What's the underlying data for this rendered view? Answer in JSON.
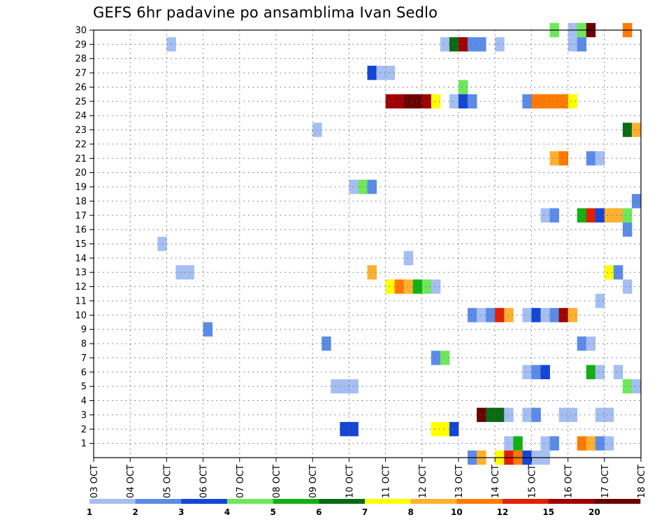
{
  "chart_data": {
    "type": "heatmap",
    "title": "GEFS 6hr padavine po ansamblima Ivan Sedlo",
    "x_labels": [
      "03 OCT",
      "04 OCT",
      "05 OCT",
      "06 OCT",
      "07 OCT",
      "08 OCT",
      "09 OCT",
      "10 OCT",
      "11 OCT",
      "12 OCT",
      "13 OCT",
      "14 OCT",
      "15 OCT",
      "16 OCT",
      "17 OCT",
      "18 OCT"
    ],
    "y_labels": [
      "1",
      "2",
      "3",
      "4",
      "5",
      "6",
      "7",
      "8",
      "9",
      "10",
      "11",
      "12",
      "13",
      "14",
      "15",
      "16",
      "17",
      "18",
      "19",
      "20",
      "21",
      "22",
      "23",
      "24",
      "25",
      "26",
      "27",
      "28",
      "29",
      "30"
    ],
    "ylim": [
      1,
      30
    ],
    "grid": true,
    "colorbar": {
      "labels": [
        "1",
        "2",
        "3",
        "4",
        "5",
        "6",
        "7",
        "8",
        "10",
        "12",
        "15",
        "20"
      ],
      "colors": [
        "#a6bff2",
        "#5b8be8",
        "#1446d6",
        "#6ee85a",
        "#12b012",
        "#0a6a14",
        "#ffff00",
        "#ffb02e",
        "#ff7a00",
        "#e02000",
        "#a00000",
        "#6a0000"
      ]
    },
    "cells": [
      {
        "member": 30,
        "day": 15.5,
        "c": 4
      },
      {
        "member": 30,
        "day": 16.0,
        "c": 1
      },
      {
        "member": 30,
        "day": 16.25,
        "c": 4
      },
      {
        "member": 30,
        "day": 16.5,
        "c": 12
      },
      {
        "member": 30,
        "day": 17.5,
        "c": 9
      },
      {
        "member": 29,
        "day": 5.0,
        "c": 1
      },
      {
        "member": 29,
        "day": 12.5,
        "c": 1
      },
      {
        "member": 29,
        "day": 12.75,
        "c": 6
      },
      {
        "member": 29,
        "day": 13.0,
        "c": 11
      },
      {
        "member": 29,
        "day": 13.25,
        "c": 2
      },
      {
        "member": 29,
        "day": 13.5,
        "c": 2
      },
      {
        "member": 29,
        "day": 14.0,
        "c": 1
      },
      {
        "member": 29,
        "day": 16.0,
        "c": 1
      },
      {
        "member": 29,
        "day": 16.25,
        "c": 2
      },
      {
        "member": 27,
        "day": 10.5,
        "c": 3
      },
      {
        "member": 27,
        "day": 10.75,
        "c": 1
      },
      {
        "member": 27,
        "day": 11.0,
        "c": 1
      },
      {
        "member": 26,
        "day": 13.0,
        "c": 4
      },
      {
        "member": 25,
        "day": 11.0,
        "c": 11
      },
      {
        "member": 25,
        "day": 11.25,
        "c": 11
      },
      {
        "member": 25,
        "day": 11.5,
        "c": 12
      },
      {
        "member": 25,
        "day": 11.75,
        "c": 12
      },
      {
        "member": 25,
        "day": 12.0,
        "c": 11
      },
      {
        "member": 25,
        "day": 12.25,
        "c": 7
      },
      {
        "member": 25,
        "day": 12.75,
        "c": 1
      },
      {
        "member": 25,
        "day": 13.0,
        "c": 3
      },
      {
        "member": 25,
        "day": 13.25,
        "c": 2
      },
      {
        "member": 25,
        "day": 14.75,
        "c": 2
      },
      {
        "member": 25,
        "day": 15.0,
        "c": 9
      },
      {
        "member": 25,
        "day": 15.25,
        "c": 9
      },
      {
        "member": 25,
        "day": 15.5,
        "c": 9
      },
      {
        "member": 25,
        "day": 15.75,
        "c": 9
      },
      {
        "member": 25,
        "day": 16.0,
        "c": 7
      },
      {
        "member": 23,
        "day": 9.0,
        "c": 1
      },
      {
        "member": 23,
        "day": 17.5,
        "c": 6
      },
      {
        "member": 23,
        "day": 17.75,
        "c": 8
      },
      {
        "member": 21,
        "day": 15.5,
        "c": 8
      },
      {
        "member": 21,
        "day": 15.75,
        "c": 9
      },
      {
        "member": 21,
        "day": 16.5,
        "c": 2
      },
      {
        "member": 21,
        "day": 16.75,
        "c": 1
      },
      {
        "member": 19,
        "day": 10.0,
        "c": 1
      },
      {
        "member": 19,
        "day": 10.25,
        "c": 4
      },
      {
        "member": 19,
        "day": 10.5,
        "c": 2
      },
      {
        "member": 18,
        "day": 17.75,
        "c": 2
      },
      {
        "member": 17,
        "day": 15.25,
        "c": 1
      },
      {
        "member": 17,
        "day": 15.5,
        "c": 2
      },
      {
        "member": 17,
        "day": 16.25,
        "c": 5
      },
      {
        "member": 17,
        "day": 16.5,
        "c": 10
      },
      {
        "member": 17,
        "day": 16.75,
        "c": 3
      },
      {
        "member": 17,
        "day": 17.0,
        "c": 8
      },
      {
        "member": 17,
        "day": 17.25,
        "c": 8
      },
      {
        "member": 17,
        "day": 17.5,
        "c": 4
      },
      {
        "member": 16,
        "day": 17.5,
        "c": 2
      },
      {
        "member": 15,
        "day": 4.75,
        "c": 1
      },
      {
        "member": 14,
        "day": 11.5,
        "c": 1
      },
      {
        "member": 13,
        "day": 5.25,
        "c": 1
      },
      {
        "member": 13,
        "day": 5.5,
        "c": 1
      },
      {
        "member": 13,
        "day": 10.5,
        "c": 8
      },
      {
        "member": 13,
        "day": 17.0,
        "c": 7
      },
      {
        "member": 13,
        "day": 17.25,
        "c": 2
      },
      {
        "member": 12,
        "day": 11.0,
        "c": 7
      },
      {
        "member": 12,
        "day": 11.25,
        "c": 9
      },
      {
        "member": 12,
        "day": 11.5,
        "c": 8
      },
      {
        "member": 12,
        "day": 11.75,
        "c": 5
      },
      {
        "member": 12,
        "day": 12.0,
        "c": 4
      },
      {
        "member": 12,
        "day": 12.25,
        "c": 1
      },
      {
        "member": 12,
        "day": 17.5,
        "c": 1
      },
      {
        "member": 11,
        "day": 16.75,
        "c": 1
      },
      {
        "member": 10,
        "day": 13.25,
        "c": 2
      },
      {
        "member": 10,
        "day": 13.5,
        "c": 1
      },
      {
        "member": 10,
        "day": 13.75,
        "c": 2
      },
      {
        "member": 10,
        "day": 14.0,
        "c": 10
      },
      {
        "member": 10,
        "day": 14.25,
        "c": 8
      },
      {
        "member": 10,
        "day": 14.75,
        "c": 1
      },
      {
        "member": 10,
        "day": 15.0,
        "c": 3
      },
      {
        "member": 10,
        "day": 15.25,
        "c": 1
      },
      {
        "member": 10,
        "day": 15.5,
        "c": 2
      },
      {
        "member": 10,
        "day": 15.75,
        "c": 11
      },
      {
        "member": 10,
        "day": 16.0,
        "c": 8
      },
      {
        "member": 9,
        "day": 6.0,
        "c": 2
      },
      {
        "member": 8,
        "day": 9.25,
        "c": 2
      },
      {
        "member": 8,
        "day": 16.25,
        "c": 2
      },
      {
        "member": 8,
        "day": 16.5,
        "c": 1
      },
      {
        "member": 7,
        "day": 12.25,
        "c": 2
      },
      {
        "member": 7,
        "day": 12.5,
        "c": 4
      },
      {
        "member": 6,
        "day": 14.75,
        "c": 1
      },
      {
        "member": 6,
        "day": 15.0,
        "c": 2
      },
      {
        "member": 6,
        "day": 15.25,
        "c": 3
      },
      {
        "member": 6,
        "day": 16.5,
        "c": 5
      },
      {
        "member": 6,
        "day": 16.75,
        "c": 1
      },
      {
        "member": 6,
        "day": 17.25,
        "c": 1
      },
      {
        "member": 5,
        "day": 9.5,
        "c": 1
      },
      {
        "member": 5,
        "day": 9.75,
        "c": 1
      },
      {
        "member": 5,
        "day": 10.0,
        "c": 1
      },
      {
        "member": 5,
        "day": 17.5,
        "c": 4
      },
      {
        "member": 5,
        "day": 17.75,
        "c": 1
      },
      {
        "member": 3,
        "day": 13.5,
        "c": 12
      },
      {
        "member": 3,
        "day": 13.75,
        "c": 6
      },
      {
        "member": 3,
        "day": 14.0,
        "c": 6
      },
      {
        "member": 3,
        "day": 14.25,
        "c": 1
      },
      {
        "member": 3,
        "day": 14.75,
        "c": 1
      },
      {
        "member": 3,
        "day": 15.0,
        "c": 2
      },
      {
        "member": 3,
        "day": 15.75,
        "c": 1
      },
      {
        "member": 3,
        "day": 16.0,
        "c": 1
      },
      {
        "member": 3,
        "day": 16.75,
        "c": 1
      },
      {
        "member": 3,
        "day": 17.0,
        "c": 1
      },
      {
        "member": 2,
        "day": 9.75,
        "c": 3
      },
      {
        "member": 2,
        "day": 10.0,
        "c": 3
      },
      {
        "member": 2,
        "day": 12.25,
        "c": 7
      },
      {
        "member": 2,
        "day": 12.5,
        "c": 7
      },
      {
        "member": 2,
        "day": 12.75,
        "c": 3
      },
      {
        "member": 1,
        "day": 14.25,
        "c": 1
      },
      {
        "member": 1,
        "day": 14.5,
        "c": 5
      },
      {
        "member": 1,
        "day": 15.25,
        "c": 1
      },
      {
        "member": 1,
        "day": 15.5,
        "c": 2
      },
      {
        "member": 1,
        "day": 16.25,
        "c": 9
      },
      {
        "member": 1,
        "day": 16.5,
        "c": 8
      },
      {
        "member": 1,
        "day": 16.75,
        "c": 2
      },
      {
        "member": 1,
        "day": 17.0,
        "c": 1
      },
      {
        "member": 0,
        "day": 13.25,
        "c": 2
      },
      {
        "member": 0,
        "day": 13.5,
        "c": 8
      },
      {
        "member": 0,
        "day": 14.0,
        "c": 7
      },
      {
        "member": 0,
        "day": 14.25,
        "c": 10
      },
      {
        "member": 0,
        "day": 14.5,
        "c": 9
      },
      {
        "member": 0,
        "day": 14.75,
        "c": 3
      },
      {
        "member": 0,
        "day": 15.0,
        "c": 1
      },
      {
        "member": 0,
        "day": 15.25,
        "c": 1
      }
    ]
  }
}
